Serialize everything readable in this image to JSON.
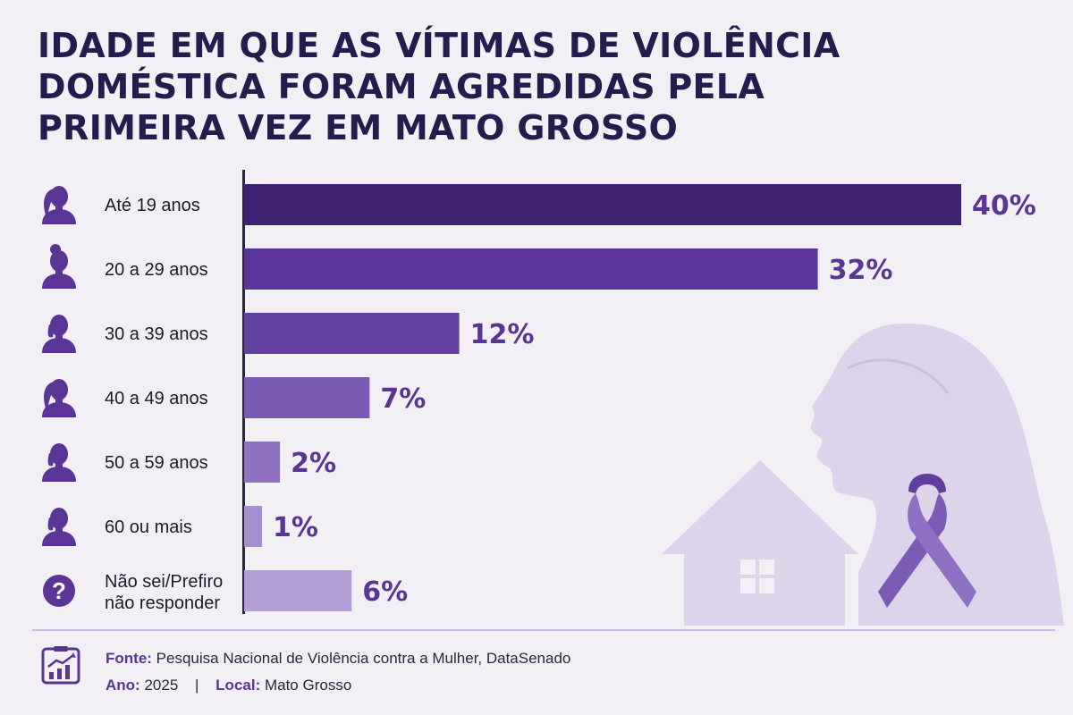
{
  "title": "IDADE EM QUE AS VÍTIMAS DE VIOLÊNCIA DOMÉSTICA FORAM AGREDIDAS PELA PRIMEIRA VEZ EM MATO GROSSO",
  "chart_data": {
    "type": "bar",
    "orientation": "horizontal",
    "title": "IDADE EM QUE AS VÍTIMAS DE VIOLÊNCIA DOMÉSTICA FORAM AGREDIDAS PELA PRIMEIRA VEZ EM MATO GROSSO",
    "categories": [
      "Até 19 anos",
      "20 a 29 anos",
      "30 a 39 anos",
      "40 a 49 anos",
      "50 a 59 anos",
      "60 ou mais",
      "Não sei/Prefiro não responder"
    ],
    "values": [
      40,
      32,
      12,
      7,
      2,
      1,
      6
    ],
    "value_labels": [
      "40%",
      "32%",
      "12%",
      "7%",
      "2%",
      "1%",
      "6%"
    ],
    "unit": "%",
    "xlim": [
      0,
      40
    ],
    "grid": false,
    "legend": "none",
    "bar_colors": [
      "#3f2172",
      "#5b3599",
      "#62409e",
      "#7b5ab3",
      "#8f71c0",
      "#a68fd0",
      "#b39fd6"
    ],
    "label_color": "#5a3596",
    "category_icons": [
      "woman-ponytail-icon",
      "woman-bun-icon",
      "woman-short-hair-icon",
      "woman-ponytail-icon",
      "woman-short-hair-icon",
      "woman-short-hair-icon",
      "question-mark-icon"
    ]
  },
  "footer": {
    "source_label": "Fonte:",
    "source_text": "Pesquisa Nacional de Violência contra a Mulher, DataSenado",
    "year_label": "Ano:",
    "year_value": "2025",
    "separator": "|",
    "place_label": "Local:",
    "place_value": "Mato Grosso",
    "icon": "chart-report-icon"
  },
  "decoration": {
    "silhouette_icon": "woman-profile-icon",
    "house_icon": "house-icon",
    "ribbon_icon": "awareness-ribbon-icon",
    "silhouette_color": "#ddd3ea",
    "ribbon_color": "#7b5cb5"
  }
}
